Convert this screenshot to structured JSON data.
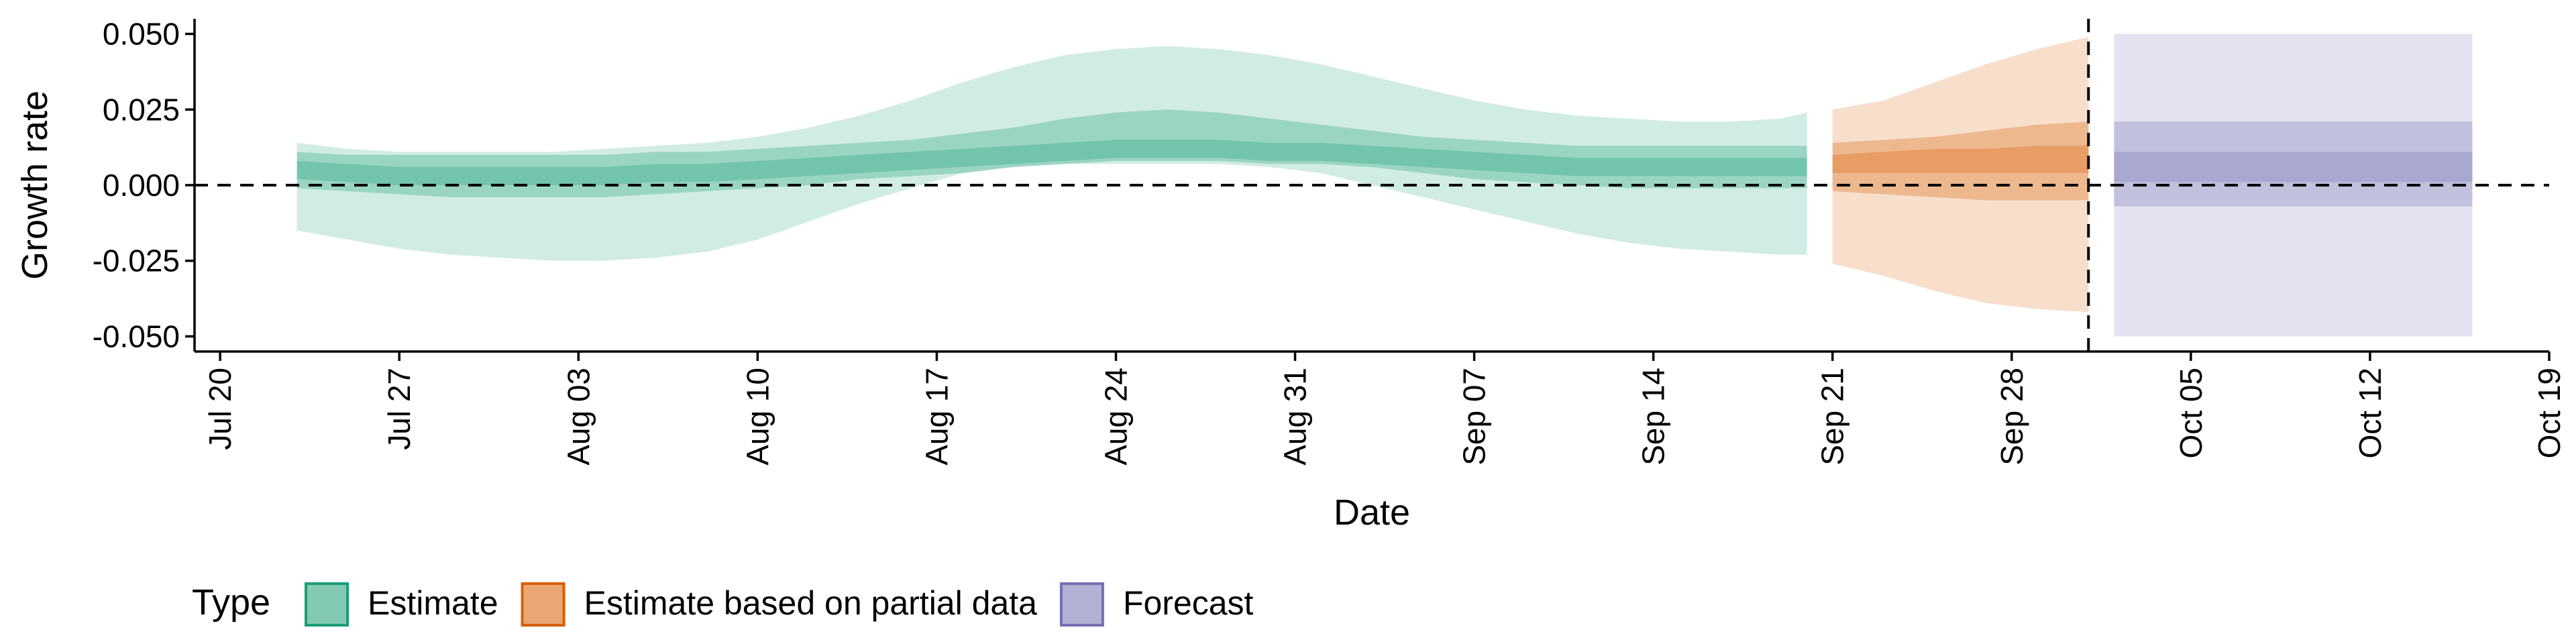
{
  "chart_data": {
    "type": "area",
    "xlabel": "Date",
    "ylabel": "Growth rate",
    "ylim": [
      -0.055,
      0.055
    ],
    "xlim": [
      "2020-07-19",
      "2020-10-19"
    ],
    "y_ticks": [
      -0.05,
      -0.025,
      0.0,
      0.025,
      0.05
    ],
    "y_tick_labels": [
      "-0.050",
      "-0.025",
      "0.000",
      "0.025",
      "0.050"
    ],
    "x_ticks": [
      "2020-07-20",
      "2020-07-27",
      "2020-08-03",
      "2020-08-10",
      "2020-08-17",
      "2020-08-24",
      "2020-08-31",
      "2020-09-07",
      "2020-09-14",
      "2020-09-21",
      "2020-09-28",
      "2020-10-05",
      "2020-10-12",
      "2020-10-19"
    ],
    "x_tick_labels": [
      "Jul 20",
      "Jul 27",
      "Aug 03",
      "Aug 10",
      "Aug 17",
      "Aug 24",
      "Aug 31",
      "Sep 07",
      "Sep 14",
      "Sep 21",
      "Sep 28",
      "Oct 05",
      "Oct 12",
      "Oct 19"
    ],
    "reference_lines": {
      "horizontal_y": 0.0,
      "vertical_date": "2020-10-01"
    },
    "legend": {
      "title": "Type",
      "position": "bottom-left",
      "entries": [
        {
          "label": "Estimate",
          "color": "#1b9e77"
        },
        {
          "label": "Estimate based on partial data",
          "color": "#d95f02"
        },
        {
          "label": "Forecast",
          "color": "#7570b3"
        }
      ]
    },
    "series": [
      {
        "name": "Estimate",
        "color": "#1b9e77",
        "x": [
          "2020-07-23",
          "2020-07-25",
          "2020-07-27",
          "2020-07-29",
          "2020-07-31",
          "2020-08-02",
          "2020-08-04",
          "2020-08-06",
          "2020-08-08",
          "2020-08-10",
          "2020-08-12",
          "2020-08-14",
          "2020-08-16",
          "2020-08-18",
          "2020-08-20",
          "2020-08-22",
          "2020-08-24",
          "2020-08-26",
          "2020-08-28",
          "2020-08-30",
          "2020-09-01",
          "2020-09-03",
          "2020-09-05",
          "2020-09-07",
          "2020-09-09",
          "2020-09-11",
          "2020-09-13",
          "2020-09-15",
          "2020-09-17",
          "2020-09-19",
          "2020-09-20"
        ],
        "median": [
          0.005,
          0.004,
          0.003,
          0.003,
          0.003,
          0.003,
          0.003,
          0.004,
          0.004,
          0.005,
          0.006,
          0.007,
          0.008,
          0.009,
          0.01,
          0.011,
          0.012,
          0.012,
          0.012,
          0.011,
          0.011,
          0.01,
          0.009,
          0.008,
          0.007,
          0.006,
          0.006,
          0.006,
          0.006,
          0.006,
          0.006
        ],
        "lower_20": [
          0.002,
          0.001,
          0.0,
          0.0,
          0.0,
          0.0,
          0.0,
          0.001,
          0.001,
          0.002,
          0.003,
          0.004,
          0.005,
          0.006,
          0.007,
          0.008,
          0.009,
          0.009,
          0.009,
          0.008,
          0.008,
          0.007,
          0.006,
          0.005,
          0.004,
          0.003,
          0.003,
          0.003,
          0.003,
          0.003,
          0.003
        ],
        "upper_20": [
          0.008,
          0.007,
          0.006,
          0.006,
          0.006,
          0.006,
          0.006,
          0.007,
          0.007,
          0.008,
          0.009,
          0.01,
          0.011,
          0.012,
          0.013,
          0.014,
          0.015,
          0.015,
          0.015,
          0.014,
          0.014,
          0.013,
          0.012,
          0.011,
          0.01,
          0.009,
          0.009,
          0.009,
          0.009,
          0.009,
          0.009
        ],
        "lower_50": [
          -0.001,
          -0.002,
          -0.003,
          -0.004,
          -0.004,
          -0.004,
          -0.004,
          -0.003,
          -0.002,
          -0.001,
          0.0,
          0.002,
          0.003,
          0.004,
          0.006,
          0.007,
          0.008,
          0.008,
          0.008,
          0.007,
          0.007,
          0.006,
          0.004,
          0.002,
          0.001,
          0.0,
          -0.001,
          -0.001,
          -0.001,
          -0.001,
          -0.001
        ],
        "upper_50": [
          0.011,
          0.01,
          0.01,
          0.01,
          0.01,
          0.01,
          0.01,
          0.011,
          0.011,
          0.012,
          0.013,
          0.014,
          0.015,
          0.017,
          0.019,
          0.022,
          0.024,
          0.025,
          0.024,
          0.022,
          0.02,
          0.018,
          0.016,
          0.015,
          0.014,
          0.013,
          0.013,
          0.013,
          0.013,
          0.013,
          0.013
        ],
        "lower_90": [
          -0.015,
          -0.018,
          -0.021,
          -0.023,
          -0.024,
          -0.025,
          -0.025,
          -0.024,
          -0.022,
          -0.018,
          -0.012,
          -0.006,
          -0.001,
          0.004,
          0.006,
          0.007,
          0.007,
          0.007,
          0.007,
          0.006,
          0.004,
          0.0,
          -0.004,
          -0.008,
          -0.012,
          -0.016,
          -0.019,
          -0.021,
          -0.022,
          -0.023,
          -0.023
        ],
        "upper_90": [
          0.014,
          0.012,
          0.011,
          0.011,
          0.011,
          0.011,
          0.012,
          0.013,
          0.014,
          0.016,
          0.019,
          0.023,
          0.028,
          0.034,
          0.039,
          0.043,
          0.045,
          0.046,
          0.045,
          0.043,
          0.04,
          0.036,
          0.032,
          0.028,
          0.025,
          0.023,
          0.022,
          0.021,
          0.021,
          0.022,
          0.024
        ]
      },
      {
        "name": "Estimate based on partial data",
        "color": "#d95f02",
        "x": [
          "2020-09-21",
          "2020-09-23",
          "2020-09-25",
          "2020-09-27",
          "2020-09-29",
          "2020-10-01"
        ],
        "median": [
          0.007,
          0.008,
          0.008,
          0.008,
          0.008,
          0.009
        ],
        "lower_20": [
          0.004,
          0.004,
          0.004,
          0.004,
          0.004,
          0.004
        ],
        "upper_20": [
          0.01,
          0.011,
          0.012,
          0.012,
          0.013,
          0.013
        ],
        "lower_50": [
          -0.002,
          -0.003,
          -0.004,
          -0.005,
          -0.005,
          -0.005
        ],
        "upper_50": [
          0.014,
          0.015,
          0.016,
          0.018,
          0.02,
          0.021
        ],
        "lower_90": [
          -0.026,
          -0.03,
          -0.035,
          -0.039,
          -0.041,
          -0.042
        ],
        "upper_90": [
          0.025,
          0.028,
          0.034,
          0.04,
          0.045,
          0.049
        ]
      },
      {
        "name": "Forecast",
        "color": "#7570b3",
        "x": [
          "2020-10-02",
          "2020-10-16"
        ],
        "median": [
          0.01,
          0.01
        ],
        "lower_20": [
          0.001,
          0.001
        ],
        "upper_20": [
          0.011,
          0.011
        ],
        "lower_50": [
          -0.007,
          -0.007
        ],
        "upper_50": [
          0.021,
          0.021
        ],
        "lower_90": [
          -0.05,
          -0.05
        ],
        "upper_90": [
          0.05,
          0.05
        ]
      }
    ]
  }
}
